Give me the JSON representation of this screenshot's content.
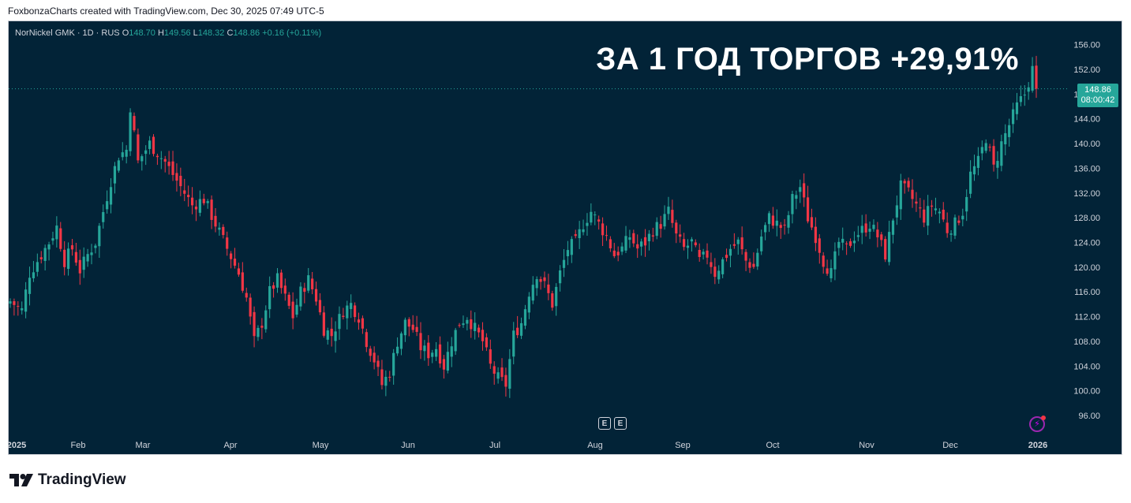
{
  "caption": "FoxbonzaCharts created with TradingView.com, Dec 30, 2025 07:49 UTC-5",
  "legend": {
    "symbol": "NorNickel GMK · 1D · RUS",
    "o_label": "O",
    "o_value": "148.70",
    "h_label": "H",
    "h_value": "149.56",
    "l_label": "L",
    "l_value": "148.32",
    "c_label": "C",
    "c_value": "148.86",
    "change": "+0.16 (+0.11%)"
  },
  "headline": "ЗА 1 ГОД ТОРГОВ +29,91%",
  "price_tag": {
    "price": "148.86",
    "countdown": "08:00:42"
  },
  "earnings_badges": [
    "E",
    "E"
  ],
  "brand": {
    "name": "TradingView"
  },
  "colors": {
    "background": "#022337",
    "up": "#26a69a",
    "down": "#f23645",
    "axis_text": "#d1d4dc",
    "price_line": "#26a69a"
  },
  "chart_data": {
    "type": "candlestick",
    "symbol": "NorNickel GMK",
    "interval": "1D",
    "ylim": [
      93,
      158
    ],
    "y_ticks": [
      "156.00",
      "152.00",
      "148.00",
      "144.00",
      "140.00",
      "136.00",
      "132.00",
      "128.00",
      "124.00",
      "120.00",
      "116.00",
      "112.00",
      "108.00",
      "104.00",
      "100.00",
      "96.00"
    ],
    "x_ticks": [
      "2025",
      "Feb",
      "Mar",
      "Apr",
      "May",
      "Jun",
      "Jul",
      "Aug",
      "Sep",
      "Oct",
      "Nov",
      "Dec",
      "2026"
    ],
    "last_price": 148.86,
    "grid": false,
    "close_path": [
      [
        0,
        114.5
      ],
      [
        3,
        113
      ],
      [
        5,
        119
      ],
      [
        7,
        121
      ],
      [
        10,
        124
      ],
      [
        12,
        126.5
      ],
      [
        14,
        121
      ],
      [
        16,
        123
      ],
      [
        18,
        119.5
      ],
      [
        20,
        122
      ],
      [
        22,
        124
      ],
      [
        24,
        129
      ],
      [
        26,
        134
      ],
      [
        28,
        138
      ],
      [
        30,
        139
      ],
      [
        31,
        146
      ],
      [
        33,
        137
      ],
      [
        36,
        140
      ],
      [
        40,
        137
      ],
      [
        44,
        133
      ],
      [
        47,
        130
      ],
      [
        50,
        131
      ],
      [
        53,
        127
      ],
      [
        56,
        123
      ],
      [
        59,
        119
      ],
      [
        61,
        115
      ],
      [
        63,
        108
      ],
      [
        65,
        111
      ],
      [
        67,
        116
      ],
      [
        69,
        118
      ],
      [
        71,
        115
      ],
      [
        73,
        112
      ],
      [
        75,
        116
      ],
      [
        77,
        118
      ],
      [
        79,
        115
      ],
      [
        81,
        110
      ],
      [
        83,
        109
      ],
      [
        86,
        113
      ],
      [
        88,
        114
      ],
      [
        90,
        112
      ],
      [
        92,
        108
      ],
      [
        94,
        105
      ],
      [
        96,
        101
      ],
      [
        98,
        103
      ],
      [
        100,
        108
      ],
      [
        102,
        111
      ],
      [
        104,
        110
      ],
      [
        106,
        107
      ],
      [
        108,
        106
      ],
      [
        110,
        107
      ],
      [
        112,
        104
      ],
      [
        114,
        108
      ],
      [
        116,
        111
      ],
      [
        118,
        112
      ],
      [
        120,
        110
      ],
      [
        122,
        108
      ],
      [
        124,
        104
      ],
      [
        126,
        102
      ],
      [
        128,
        101
      ],
      [
        130,
        109
      ],
      [
        132,
        111
      ],
      [
        134,
        116
      ],
      [
        136,
        119
      ],
      [
        138,
        117
      ],
      [
        140,
        114
      ],
      [
        142,
        119
      ],
      [
        144,
        123
      ],
      [
        146,
        124
      ],
      [
        148,
        127
      ],
      [
        150,
        129
      ],
      [
        152,
        127
      ],
      [
        154,
        125
      ],
      [
        156,
        122
      ],
      [
        158,
        123
      ],
      [
        160,
        125
      ],
      [
        162,
        123
      ],
      [
        164,
        124
      ],
      [
        166,
        126
      ],
      [
        168,
        127
      ],
      [
        170,
        129
      ],
      [
        172,
        125
      ],
      [
        174,
        123
      ],
      [
        176,
        124
      ],
      [
        178,
        121
      ],
      [
        180,
        122
      ],
      [
        182,
        119
      ],
      [
        184,
        121
      ],
      [
        186,
        123
      ],
      [
        188,
        124
      ],
      [
        190,
        121
      ],
      [
        192,
        120
      ],
      [
        194,
        125
      ],
      [
        196,
        128
      ],
      [
        198,
        127
      ],
      [
        200,
        126
      ],
      [
        202,
        131
      ],
      [
        204,
        133
      ],
      [
        206,
        128
      ],
      [
        208,
        125
      ],
      [
        210,
        121
      ],
      [
        212,
        119
      ],
      [
        214,
        124
      ],
      [
        216,
        123
      ],
      [
        218,
        125
      ],
      [
        220,
        126
      ],
      [
        222,
        127
      ],
      [
        224,
        125
      ],
      [
        226,
        122
      ],
      [
        228,
        128
      ],
      [
        230,
        133
      ],
      [
        232,
        132
      ],
      [
        234,
        130
      ],
      [
        236,
        128
      ],
      [
        238,
        130
      ],
      [
        240,
        129
      ],
      [
        242,
        126
      ],
      [
        244,
        127
      ],
      [
        246,
        129
      ],
      [
        248,
        135
      ],
      [
        250,
        137
      ],
      [
        252,
        141
      ],
      [
        254,
        136
      ],
      [
        256,
        140
      ],
      [
        258,
        143
      ],
      [
        260,
        146
      ],
      [
        262,
        148
      ],
      [
        264,
        152
      ],
      [
        265,
        148.86
      ]
    ]
  }
}
